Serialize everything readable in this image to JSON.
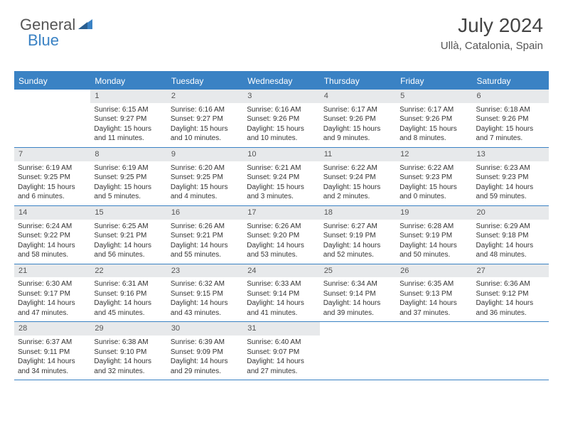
{
  "logo": {
    "general": "General",
    "blue": "Blue"
  },
  "title": "July 2024",
  "subtitle": "Ullà, Catalonia, Spain",
  "colors": {
    "accent": "#3a82c4",
    "header_bg": "#e7e9eb",
    "text": "#333333",
    "background": "#ffffff"
  },
  "weekdays": [
    "Sunday",
    "Monday",
    "Tuesday",
    "Wednesday",
    "Thursday",
    "Friday",
    "Saturday"
  ],
  "weeks": [
    [
      {
        "day": "",
        "sunrise": "",
        "sunset": "",
        "daylight": ""
      },
      {
        "day": "1",
        "sunrise": "Sunrise: 6:15 AM",
        "sunset": "Sunset: 9:27 PM",
        "daylight": "Daylight: 15 hours and 11 minutes."
      },
      {
        "day": "2",
        "sunrise": "Sunrise: 6:16 AM",
        "sunset": "Sunset: 9:27 PM",
        "daylight": "Daylight: 15 hours and 10 minutes."
      },
      {
        "day": "3",
        "sunrise": "Sunrise: 6:16 AM",
        "sunset": "Sunset: 9:26 PM",
        "daylight": "Daylight: 15 hours and 10 minutes."
      },
      {
        "day": "4",
        "sunrise": "Sunrise: 6:17 AM",
        "sunset": "Sunset: 9:26 PM",
        "daylight": "Daylight: 15 hours and 9 minutes."
      },
      {
        "day": "5",
        "sunrise": "Sunrise: 6:17 AM",
        "sunset": "Sunset: 9:26 PM",
        "daylight": "Daylight: 15 hours and 8 minutes."
      },
      {
        "day": "6",
        "sunrise": "Sunrise: 6:18 AM",
        "sunset": "Sunset: 9:26 PM",
        "daylight": "Daylight: 15 hours and 7 minutes."
      }
    ],
    [
      {
        "day": "7",
        "sunrise": "Sunrise: 6:19 AM",
        "sunset": "Sunset: 9:25 PM",
        "daylight": "Daylight: 15 hours and 6 minutes."
      },
      {
        "day": "8",
        "sunrise": "Sunrise: 6:19 AM",
        "sunset": "Sunset: 9:25 PM",
        "daylight": "Daylight: 15 hours and 5 minutes."
      },
      {
        "day": "9",
        "sunrise": "Sunrise: 6:20 AM",
        "sunset": "Sunset: 9:25 PM",
        "daylight": "Daylight: 15 hours and 4 minutes."
      },
      {
        "day": "10",
        "sunrise": "Sunrise: 6:21 AM",
        "sunset": "Sunset: 9:24 PM",
        "daylight": "Daylight: 15 hours and 3 minutes."
      },
      {
        "day": "11",
        "sunrise": "Sunrise: 6:22 AM",
        "sunset": "Sunset: 9:24 PM",
        "daylight": "Daylight: 15 hours and 2 minutes."
      },
      {
        "day": "12",
        "sunrise": "Sunrise: 6:22 AM",
        "sunset": "Sunset: 9:23 PM",
        "daylight": "Daylight: 15 hours and 0 minutes."
      },
      {
        "day": "13",
        "sunrise": "Sunrise: 6:23 AM",
        "sunset": "Sunset: 9:23 PM",
        "daylight": "Daylight: 14 hours and 59 minutes."
      }
    ],
    [
      {
        "day": "14",
        "sunrise": "Sunrise: 6:24 AM",
        "sunset": "Sunset: 9:22 PM",
        "daylight": "Daylight: 14 hours and 58 minutes."
      },
      {
        "day": "15",
        "sunrise": "Sunrise: 6:25 AM",
        "sunset": "Sunset: 9:21 PM",
        "daylight": "Daylight: 14 hours and 56 minutes."
      },
      {
        "day": "16",
        "sunrise": "Sunrise: 6:26 AM",
        "sunset": "Sunset: 9:21 PM",
        "daylight": "Daylight: 14 hours and 55 minutes."
      },
      {
        "day": "17",
        "sunrise": "Sunrise: 6:26 AM",
        "sunset": "Sunset: 9:20 PM",
        "daylight": "Daylight: 14 hours and 53 minutes."
      },
      {
        "day": "18",
        "sunrise": "Sunrise: 6:27 AM",
        "sunset": "Sunset: 9:19 PM",
        "daylight": "Daylight: 14 hours and 52 minutes."
      },
      {
        "day": "19",
        "sunrise": "Sunrise: 6:28 AM",
        "sunset": "Sunset: 9:19 PM",
        "daylight": "Daylight: 14 hours and 50 minutes."
      },
      {
        "day": "20",
        "sunrise": "Sunrise: 6:29 AM",
        "sunset": "Sunset: 9:18 PM",
        "daylight": "Daylight: 14 hours and 48 minutes."
      }
    ],
    [
      {
        "day": "21",
        "sunrise": "Sunrise: 6:30 AM",
        "sunset": "Sunset: 9:17 PM",
        "daylight": "Daylight: 14 hours and 47 minutes."
      },
      {
        "day": "22",
        "sunrise": "Sunrise: 6:31 AM",
        "sunset": "Sunset: 9:16 PM",
        "daylight": "Daylight: 14 hours and 45 minutes."
      },
      {
        "day": "23",
        "sunrise": "Sunrise: 6:32 AM",
        "sunset": "Sunset: 9:15 PM",
        "daylight": "Daylight: 14 hours and 43 minutes."
      },
      {
        "day": "24",
        "sunrise": "Sunrise: 6:33 AM",
        "sunset": "Sunset: 9:14 PM",
        "daylight": "Daylight: 14 hours and 41 minutes."
      },
      {
        "day": "25",
        "sunrise": "Sunrise: 6:34 AM",
        "sunset": "Sunset: 9:14 PM",
        "daylight": "Daylight: 14 hours and 39 minutes."
      },
      {
        "day": "26",
        "sunrise": "Sunrise: 6:35 AM",
        "sunset": "Sunset: 9:13 PM",
        "daylight": "Daylight: 14 hours and 37 minutes."
      },
      {
        "day": "27",
        "sunrise": "Sunrise: 6:36 AM",
        "sunset": "Sunset: 9:12 PM",
        "daylight": "Daylight: 14 hours and 36 minutes."
      }
    ],
    [
      {
        "day": "28",
        "sunrise": "Sunrise: 6:37 AM",
        "sunset": "Sunset: 9:11 PM",
        "daylight": "Daylight: 14 hours and 34 minutes."
      },
      {
        "day": "29",
        "sunrise": "Sunrise: 6:38 AM",
        "sunset": "Sunset: 9:10 PM",
        "daylight": "Daylight: 14 hours and 32 minutes."
      },
      {
        "day": "30",
        "sunrise": "Sunrise: 6:39 AM",
        "sunset": "Sunset: 9:09 PM",
        "daylight": "Daylight: 14 hours and 29 minutes."
      },
      {
        "day": "31",
        "sunrise": "Sunrise: 6:40 AM",
        "sunset": "Sunset: 9:07 PM",
        "daylight": "Daylight: 14 hours and 27 minutes."
      },
      {
        "day": "",
        "sunrise": "",
        "sunset": "",
        "daylight": ""
      },
      {
        "day": "",
        "sunrise": "",
        "sunset": "",
        "daylight": ""
      },
      {
        "day": "",
        "sunrise": "",
        "sunset": "",
        "daylight": ""
      }
    ]
  ]
}
